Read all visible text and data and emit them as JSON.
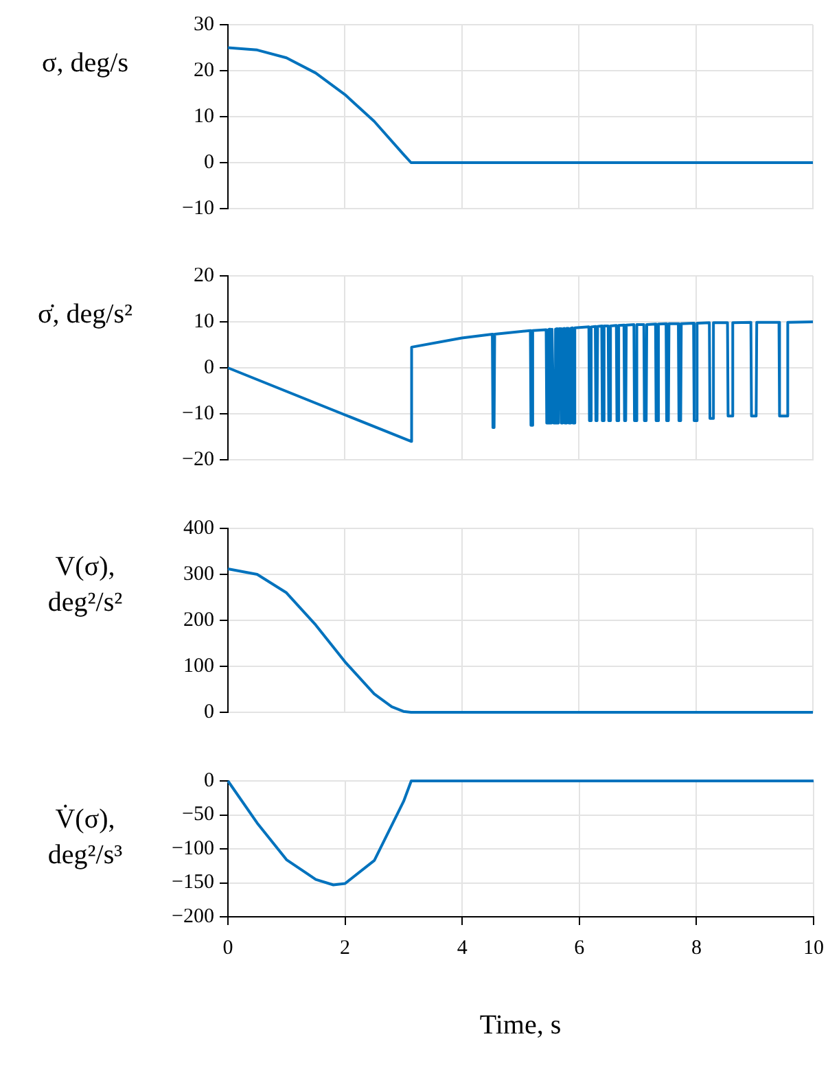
{
  "chart_data": [
    {
      "type": "line",
      "ylabel": "σ, deg/s",
      "color": "#0072bd",
      "marker": "none",
      "grid": true,
      "tick_labels": "y",
      "x": [
        0,
        0.5,
        1,
        1.5,
        2,
        2.5,
        3,
        3.13,
        4,
        5,
        6,
        7,
        8,
        9,
        10
      ],
      "values": [
        25,
        24.5,
        22.8,
        19.5,
        14.8,
        9,
        1.8,
        0,
        0,
        0,
        0,
        0,
        0,
        0,
        0
      ],
      "xlim": [
        0,
        10
      ],
      "xticks": [
        0,
        2,
        4,
        6,
        8,
        10
      ],
      "ylim": [
        -10,
        30
      ],
      "yticks": [
        -10,
        0,
        10,
        20,
        30
      ]
    },
    {
      "type": "line",
      "ylabel": "σ̇, deg/s²",
      "color": "#0072bd",
      "marker": "none",
      "grid": true,
      "tick_labels": "y",
      "x": [
        0,
        3.13,
        3.14,
        4,
        4.52,
        4.53,
        4.55,
        4.56,
        5.17,
        5.18,
        5.2,
        5.21,
        5.44,
        5.45,
        5.47,
        5.48,
        5.5,
        5.51,
        5.53,
        5.54,
        5.56,
        5.57,
        5.59,
        5.6,
        5.62,
        5.63,
        5.65,
        5.66,
        5.69,
        5.7,
        5.72,
        5.73,
        5.75,
        5.76,
        5.78,
        5.79,
        5.82,
        5.83,
        5.85,
        5.86,
        5.89,
        5.9,
        5.92,
        5.93,
        6.17,
        6.18,
        6.2,
        6.21,
        6.28,
        6.29,
        6.31,
        6.32,
        6.39,
        6.4,
        6.42,
        6.43,
        6.5,
        6.51,
        6.53,
        6.54,
        6.64,
        6.65,
        6.67,
        6.68,
        6.77,
        6.78,
        6.8,
        6.81,
        6.94,
        6.95,
        6.98,
        6.99,
        7.11,
        7.12,
        7.15,
        7.16,
        7.31,
        7.32,
        7.35,
        7.36,
        7.49,
        7.5,
        7.53,
        7.54,
        7.7,
        7.71,
        7.74,
        7.75,
        7.96,
        7.97,
        8.01,
        8.02,
        8.23,
        8.24,
        8.29,
        8.3,
        8.54,
        8.55,
        8.62,
        8.63,
        8.94,
        8.95,
        9.03,
        9.04,
        9.42,
        9.43,
        9.56,
        9.57,
        10
      ],
      "values": [
        0,
        -16,
        4.5,
        6.5,
        7.3,
        -13,
        -13,
        7.3,
        8.1,
        -12.5,
        -12.5,
        8.1,
        8.3,
        -12,
        -12,
        8.3,
        8.4,
        -12,
        -12,
        8.4,
        8.4,
        -12,
        -12,
        8.4,
        8.5,
        -12,
        -12,
        8.5,
        8.5,
        -12,
        -12,
        8.5,
        8.6,
        -12,
        -12,
        8.6,
        8.6,
        -12,
        -12,
        8.6,
        8.7,
        -12,
        -12,
        8.7,
        8.9,
        -11.5,
        -11.5,
        8.9,
        9,
        -11.5,
        -11.5,
        9,
        9.1,
        -11.5,
        -11.5,
        9.1,
        9.1,
        -11.5,
        -11.5,
        9.1,
        9.2,
        -11.5,
        -11.5,
        9.2,
        9.3,
        -11.5,
        -11.5,
        9.3,
        9.4,
        -11.5,
        -11.5,
        9.4,
        9.4,
        -11.5,
        -11.5,
        9.4,
        9.5,
        -11.5,
        -11.5,
        9.5,
        9.6,
        -11.5,
        -11.5,
        9.6,
        9.6,
        -11.5,
        -11.5,
        9.6,
        9.7,
        -11.5,
        -11.5,
        9.7,
        9.8,
        -11,
        -11,
        9.8,
        9.8,
        -10.5,
        -10.5,
        9.8,
        9.9,
        -10.5,
        -10.5,
        9.9,
        9.9,
        -10.5,
        -10.5,
        9.9,
        10
      ],
      "xlim": [
        0,
        10
      ],
      "xticks": [
        0,
        2,
        4,
        6,
        8,
        10
      ],
      "ylim": [
        -20,
        20
      ],
      "yticks": [
        -20,
        -10,
        0,
        10,
        20
      ]
    },
    {
      "type": "line",
      "ylabel": "V(σ), deg²/s²",
      "color": "#0072bd",
      "marker": "none",
      "grid": true,
      "tick_labels": "y",
      "x": [
        0,
        0.5,
        1,
        1.5,
        2,
        2.5,
        2.8,
        3,
        3.13,
        4,
        6,
        8,
        10
      ],
      "values": [
        312,
        300,
        260,
        190,
        110,
        40,
        12,
        2,
        0,
        0,
        0,
        0,
        0
      ],
      "xlim": [
        0,
        10
      ],
      "xticks": [
        0,
        2,
        4,
        6,
        8,
        10
      ],
      "ylim": [
        0,
        400
      ],
      "yticks": [
        0,
        100,
        200,
        300,
        400
      ]
    },
    {
      "type": "line",
      "ylabel": "V̇(σ), deg²/s³",
      "xlabel": "Time, s",
      "color": "#0072bd",
      "marker": "none",
      "grid": true,
      "x": [
        0,
        0.5,
        1,
        1.5,
        1.8,
        2,
        2.5,
        3,
        3.13,
        4,
        6,
        8,
        10
      ],
      "values": [
        0,
        -62,
        -116,
        -145,
        -153,
        -151,
        -117,
        -30,
        0,
        0,
        0,
        0,
        0
      ],
      "xlim": [
        0,
        10
      ],
      "xticks": [
        0,
        2,
        4,
        6,
        8,
        10
      ],
      "ylim": [
        -200,
        0
      ],
      "yticks": [
        -200,
        -150,
        -100,
        -50,
        0
      ]
    }
  ]
}
